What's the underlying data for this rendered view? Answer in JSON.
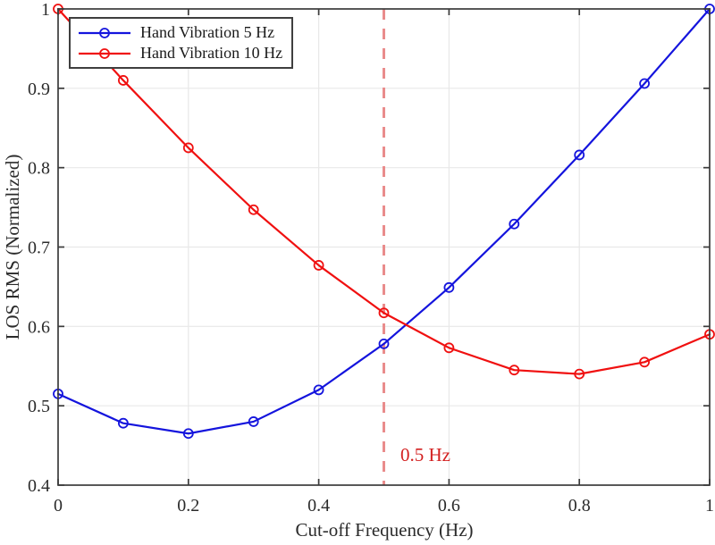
{
  "chart_data": {
    "type": "line",
    "title": "",
    "xlabel": "Cut-off Frequency (Hz)",
    "ylabel": "LOS RMS (Normalized)",
    "xlim": [
      0,
      1
    ],
    "ylim": [
      0.4,
      1
    ],
    "xticks": [
      0,
      0.2,
      0.4,
      0.6,
      0.8,
      1
    ],
    "xtick_labels": [
      "0",
      "0.2",
      "0.4",
      "0.6",
      "0.8",
      "1"
    ],
    "yticks": [
      0.4,
      0.5,
      0.6,
      0.7,
      0.8,
      0.9,
      1
    ],
    "ytick_labels": [
      "0.4",
      "0.5",
      "0.6",
      "0.7",
      "0.8",
      "0.9",
      "1"
    ],
    "grid": true,
    "legend_position": "top-left",
    "x": [
      0,
      0.1,
      0.2,
      0.3,
      0.4,
      0.5,
      0.6,
      0.7,
      0.8,
      0.9,
      1.0
    ],
    "series": [
      {
        "name": "Hand Vibration 5 Hz",
        "color": "#1414dd",
        "marker": "circle",
        "values": [
          0.515,
          0.478,
          0.465,
          0.48,
          0.52,
          0.578,
          0.649,
          0.729,
          0.816,
          0.906,
          1.0
        ]
      },
      {
        "name": "Hand Vibration 10 Hz",
        "color": "#f01010",
        "marker": "circle",
        "values": [
          1.0,
          0.91,
          0.825,
          0.747,
          0.677,
          0.617,
          0.573,
          0.545,
          0.54,
          0.555,
          0.59
        ]
      }
    ],
    "annotation": {
      "label": "0.5 Hz",
      "line_x": 0.5,
      "text_color": "#d32020",
      "line_color": "#e98c8c"
    },
    "axis_color": "#3b3b3b",
    "grid_color": "#e8e8e8",
    "tick_label_color": "#2b2b2b"
  }
}
